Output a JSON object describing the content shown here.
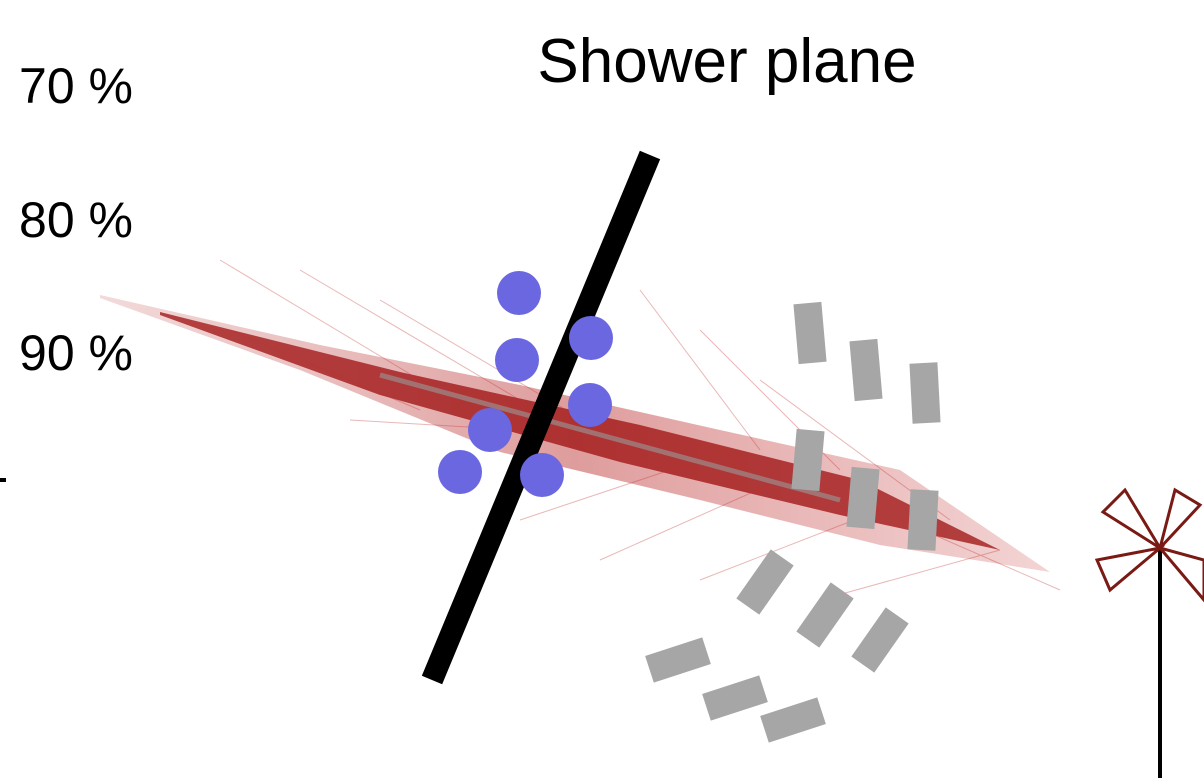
{
  "title": "Shower plane",
  "levels": [
    "70 %",
    "80 %",
    "90 %"
  ]
}
